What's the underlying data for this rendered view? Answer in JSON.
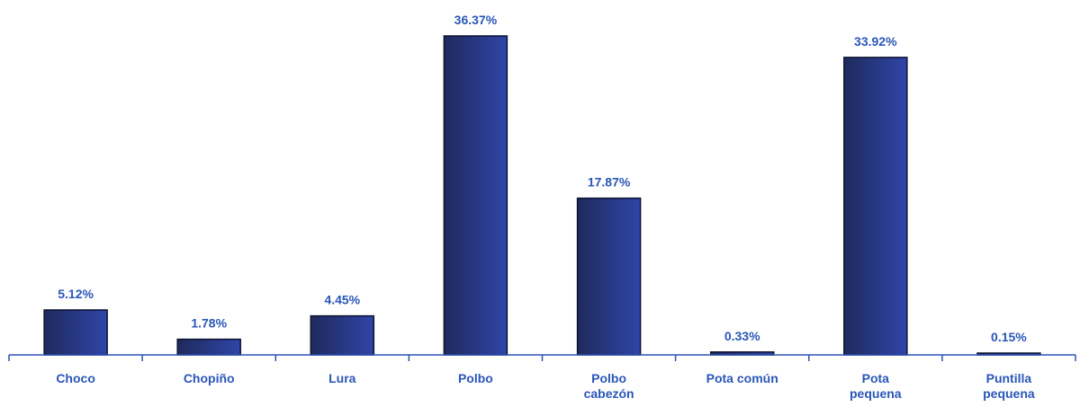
{
  "chart_data": {
    "type": "bar",
    "categories": [
      "Choco",
      "Chopiño",
      "Lura",
      "Polbo",
      "Polbo cabezón",
      "Pota común",
      "Pota pequena",
      "Puntilla pequena"
    ],
    "category_lines": [
      [
        "Choco"
      ],
      [
        "Chopiño"
      ],
      [
        "Lura"
      ],
      [
        "Polbo"
      ],
      [
        "Polbo",
        "cabezón"
      ],
      [
        "Pota común"
      ],
      [
        "Pota",
        "pequena"
      ],
      [
        "Puntilla",
        "pequena"
      ]
    ],
    "values": [
      5.12,
      1.78,
      4.45,
      36.37,
      17.87,
      0.33,
      33.92,
      0.15
    ],
    "data_labels": [
      "5.12%",
      "1.78%",
      "4.45%",
      "36.37%",
      "17.87%",
      "0.33%",
      "33.92%",
      "0.15%"
    ],
    "unit": "%",
    "title": "",
    "xlabel": "",
    "ylabel": "",
    "grid": false,
    "legend": "none",
    "colors": {
      "bar_dark": "#1f2a5c",
      "bar_light": "#2f45a8",
      "bar_border": "#0d1230",
      "axis": "#2f52b8",
      "label": "#2a56b8"
    }
  }
}
